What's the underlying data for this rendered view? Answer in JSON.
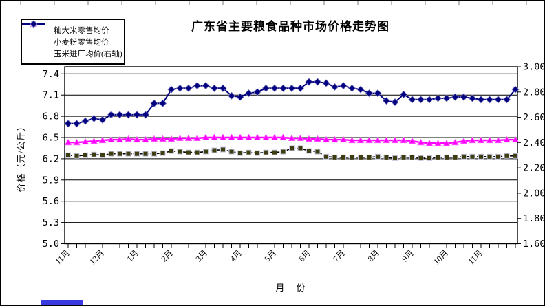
{
  "chart_data": {
    "type": "line",
    "title": "广东省主要粮食品种市场价格走势图",
    "xlabel": "月　份",
    "ylabel": "价格（元/公斤）",
    "grid": "horizontal",
    "legend_position": "top-left",
    "x_month_labels": [
      "11月",
      "12月",
      "1月",
      "2月",
      "3月",
      "4月",
      "5月",
      "6月",
      "7月",
      "8月",
      "9月",
      "10月",
      "11月"
    ],
    "points_per_month_label": 4,
    "left_axis": {
      "min": 5.0,
      "plot_top_value": 7.5,
      "tick_labels": [
        "7.4",
        "7.1",
        "6.8",
        "6.5",
        "6.2",
        "5.9",
        "5.6",
        "5.3",
        "5.0"
      ],
      "tick_values": [
        7.4,
        7.1,
        6.8,
        6.5,
        6.2,
        5.9,
        5.6,
        5.3,
        5.0
      ]
    },
    "right_axis": {
      "min": 1.6,
      "max": 3.0,
      "tick_labels": [
        "3.00",
        "2.80",
        "2.60",
        "2.40",
        "2.20",
        "2.00",
        "1.80",
        "1.60"
      ],
      "tick_values": [
        3.0,
        2.8,
        2.6,
        2.4,
        2.2,
        2.0,
        1.8,
        1.6
      ]
    },
    "series": [
      {
        "name": "籼大米零售均价",
        "axis": "left",
        "color": "#ff00ff",
        "dash": "",
        "line_width": 2.4,
        "marker": "triangle",
        "marker_fill": "#ff00ff",
        "marker_stroke": "#ff66ff",
        "values": [
          6.43,
          6.43,
          6.44,
          6.45,
          6.46,
          6.47,
          6.47,
          6.48,
          6.47,
          6.47,
          6.48,
          6.48,
          6.48,
          6.49,
          6.49,
          6.49,
          6.5,
          6.5,
          6.5,
          6.5,
          6.5,
          6.5,
          6.5,
          6.5,
          6.5,
          6.5,
          6.49,
          6.49,
          6.48,
          6.48,
          6.47,
          6.47,
          6.47,
          6.46,
          6.46,
          6.46,
          6.46,
          6.46,
          6.46,
          6.46,
          6.45,
          6.43,
          6.42,
          6.42,
          6.42,
          6.43,
          6.45,
          6.46,
          6.46,
          6.46,
          6.46,
          6.47,
          6.47
        ]
      },
      {
        "name": "小麦粉零售均价",
        "axis": "left",
        "color": "#000000",
        "dash": "5,3",
        "line_width": 1.6,
        "marker": "square",
        "marker_fill": "#3d3d0f",
        "marker_stroke": "#c6c6e0",
        "values": [
          6.25,
          6.24,
          6.25,
          6.26,
          6.25,
          6.27,
          6.27,
          6.27,
          6.27,
          6.27,
          6.27,
          6.28,
          6.31,
          6.3,
          6.29,
          6.29,
          6.3,
          6.32,
          6.33,
          6.3,
          6.28,
          6.29,
          6.28,
          6.29,
          6.29,
          6.3,
          6.35,
          6.35,
          6.31,
          6.3,
          6.23,
          6.22,
          6.22,
          6.22,
          6.22,
          6.22,
          6.23,
          6.22,
          6.21,
          6.22,
          6.22,
          6.21,
          6.21,
          6.22,
          6.22,
          6.22,
          6.23,
          6.23,
          6.23,
          6.23,
          6.23,
          6.24,
          6.24
        ]
      },
      {
        "name": "玉米进厂均价(右轴)",
        "axis": "right",
        "color": "#000080",
        "dash": "",
        "line_width": 2,
        "marker": "diamond",
        "marker_fill": "#000080",
        "marker_stroke": "#8080c0",
        "values": [
          2.55,
          2.55,
          2.57,
          2.59,
          2.58,
          2.62,
          2.62,
          2.62,
          2.62,
          2.62,
          2.71,
          2.71,
          2.82,
          2.83,
          2.83,
          2.85,
          2.85,
          2.83,
          2.83,
          2.77,
          2.76,
          2.79,
          2.8,
          2.83,
          2.83,
          2.83,
          2.83,
          2.83,
          2.88,
          2.88,
          2.87,
          2.84,
          2.85,
          2.83,
          2.82,
          2.79,
          2.79,
          2.73,
          2.72,
          2.78,
          2.74,
          2.74,
          2.74,
          2.75,
          2.75,
          2.76,
          2.76,
          2.75,
          2.74,
          2.74,
          2.74,
          2.74,
          2.82
        ]
      }
    ]
  }
}
